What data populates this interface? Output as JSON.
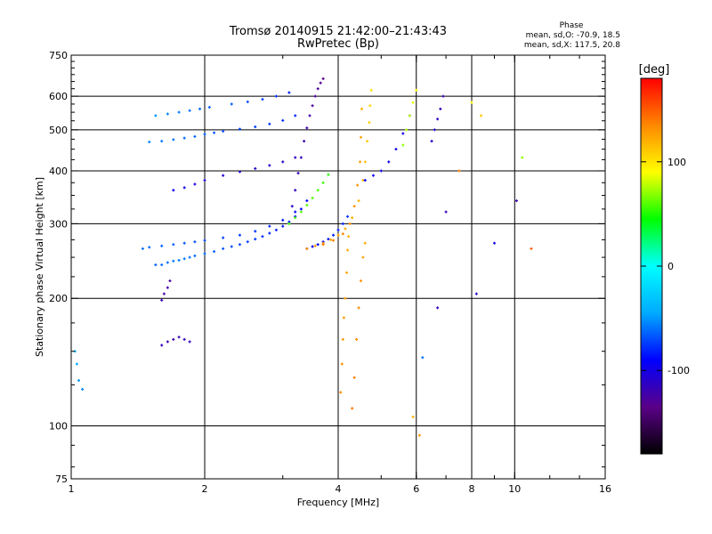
{
  "chart_data": {
    "type": "scatter",
    "title": "Tromsø 20140915 21:42:00–21:43:43",
    "subtitle": "RwPretec (Bp)",
    "xlabel": "Frequency [MHz]",
    "ylabel": "Stationary phase Virtual Height [km]",
    "x_scale": "log",
    "y_scale": "log",
    "xlim": [
      1,
      16
    ],
    "ylim": [
      75,
      750
    ],
    "x_ticks": [
      1,
      2,
      4,
      6,
      8,
      10,
      16
    ],
    "y_ticks": [
      75,
      100,
      200,
      300,
      400,
      500,
      600,
      750
    ],
    "x_gridlines": [
      2,
      4,
      6,
      8,
      10
    ],
    "y_gridlines": [
      100,
      200,
      300,
      400,
      500,
      600
    ],
    "grid": true,
    "phase_info": {
      "heading": "Phase",
      "line_o": "mean, sd,O: -70.9, 18.5",
      "line_x": "mean, sd,X: 117.5, 20.8"
    },
    "colorbar": {
      "label": "[deg]",
      "ticks": [
        100,
        0,
        -100
      ],
      "range": [
        -180,
        180
      ],
      "colors": [
        "#000000",
        "#5a0088",
        "#0000ff",
        "#00aaff",
        "#00ffff",
        "#00ff00",
        "#ffff00",
        "#ff8800",
        "#ff0000"
      ]
    },
    "series": [
      {
        "x": [
          1.55,
          1.6,
          1.65,
          1.7,
          1.75,
          1.8,
          1.85,
          1.9,
          2.0,
          2.1,
          2.2,
          2.3,
          2.4,
          2.5,
          2.6,
          2.7,
          2.8,
          2.9,
          3.0,
          3.1,
          3.2,
          3.3
        ],
        "y": [
          240,
          240,
          243,
          245,
          246,
          248,
          250,
          252,
          255,
          258,
          262,
          265,
          268,
          272,
          276,
          280,
          285,
          290,
          296,
          303,
          312,
          325
        ],
        "phase": [
          -65,
          -62,
          -60,
          -58,
          -56,
          -58,
          -60,
          -62,
          -64,
          -66,
          -68,
          -70,
          -72,
          -74,
          -76,
          -78,
          -80,
          -82,
          -84,
          -86,
          -88,
          -90
        ]
      },
      {
        "x": [
          1.45,
          1.5,
          1.6,
          1.7,
          1.8,
          1.9,
          2.0,
          2.2,
          2.4,
          2.6,
          2.8,
          3.0,
          3.2,
          3.4
        ],
        "y": [
          262,
          264,
          266,
          268,
          270,
          272,
          274,
          278,
          282,
          288,
          296,
          306,
          320,
          340
        ],
        "phase": [
          -60,
          -62,
          -64,
          -66,
          -68,
          -70,
          -72,
          -74,
          -76,
          -78,
          -80,
          -84,
          -88,
          -92
        ]
      },
      {
        "x": [
          1.5,
          1.6,
          1.7,
          1.8,
          1.9,
          2.0,
          2.1,
          2.2,
          2.4,
          2.6,
          2.8,
          3.0,
          3.2
        ],
        "y": [
          468,
          470,
          474,
          478,
          482,
          488,
          492,
          496,
          502,
          508,
          516,
          526,
          540
        ],
        "phase": [
          -55,
          -58,
          -60,
          -62,
          -64,
          -66,
          -68,
          -70,
          -72,
          -74,
          -76,
          -78,
          -80
        ]
      },
      {
        "x": [
          1.55,
          1.65,
          1.75,
          1.85,
          1.95,
          2.05,
          2.3,
          2.5,
          2.7,
          2.9,
          3.1
        ],
        "y": [
          540,
          545,
          550,
          555,
          560,
          565,
          575,
          582,
          590,
          600,
          612
        ],
        "phase": [
          -52,
          -55,
          -58,
          -60,
          -62,
          -64,
          -66,
          -70,
          -74,
          -78,
          -82
        ]
      },
      {
        "x": [
          1.7,
          1.8,
          1.9,
          2.0,
          2.2,
          2.4,
          2.6,
          2.8,
          3.0,
          3.2
        ],
        "y": [
          360,
          365,
          372,
          380,
          390,
          398,
          405,
          412,
          420,
          430
        ],
        "phase": [
          -95,
          -98,
          -100,
          -102,
          -104,
          -106,
          -108,
          -110,
          -112,
          -114
        ]
      },
      {
        "x": [
          3.15,
          3.2,
          3.25,
          3.3,
          3.35,
          3.4,
          3.45,
          3.5,
          3.55,
          3.6,
          3.65,
          3.7
        ],
        "y": [
          330,
          360,
          395,
          430,
          470,
          505,
          540,
          570,
          600,
          625,
          645,
          660
        ],
        "phase": [
          -112,
          -114,
          -116,
          -118,
          -120,
          -122,
          -124,
          -126,
          -128,
          -130,
          -132,
          -134
        ]
      },
      {
        "x": [
          3.4,
          3.5,
          3.6,
          3.7,
          3.8,
          3.9,
          4.0,
          4.1,
          4.2
        ],
        "y": [
          262,
          265,
          268,
          272,
          276,
          282,
          290,
          300,
          312
        ],
        "phase": [
          -95,
          -92,
          -90,
          -88,
          -86,
          -84,
          -82,
          -80,
          -78
        ]
      },
      {
        "x": [
          3.1,
          3.2,
          3.3,
          3.4,
          3.5,
          3.6,
          3.7,
          3.8
        ],
        "y": [
          300,
          310,
          320,
          332,
          345,
          360,
          375,
          392
        ],
        "phase": [
          55,
          58,
          60,
          62,
          60,
          58,
          55,
          52
        ]
      },
      {
        "x": [
          3.4,
          3.55,
          3.7,
          3.85,
          4.0,
          4.15,
          4.3,
          4.45,
          4.55,
          4.6,
          4.65,
          4.7,
          4.72,
          4.75
        ],
        "y": [
          262,
          266,
          270,
          275,
          282,
          292,
          310,
          340,
          380,
          420,
          470,
          520,
          570,
          620
        ],
        "phase": [
          130,
          128,
          126,
          125,
          124,
          122,
          120,
          118,
          115,
          112,
          110,
          108,
          105,
          102
        ]
      },
      {
        "x": [
          3.7,
          3.9,
          4.1,
          4.25,
          4.35,
          4.42,
          4.48,
          4.5,
          4.52
        ],
        "y": [
          268,
          274,
          284,
          300,
          330,
          370,
          420,
          480,
          560
        ],
        "phase": [
          140,
          138,
          136,
          134,
          132,
          130,
          128,
          125,
          120
        ]
      },
      {
        "x": [
          4.05,
          4.08,
          4.1,
          4.12,
          4.15,
          4.18,
          4.2,
          4.22
        ],
        "y": [
          120,
          140,
          160,
          180,
          200,
          230,
          260,
          280
        ],
        "phase": [
          135,
          132,
          130,
          128,
          126,
          124,
          122,
          120
        ]
      },
      {
        "x": [
          4.3,
          4.35,
          4.4,
          4.45,
          4.5,
          4.55,
          4.6
        ],
        "y": [
          110,
          130,
          160,
          190,
          220,
          250,
          270
        ],
        "phase": [
          140,
          138,
          136,
          134,
          130,
          126,
          122
        ]
      },
      {
        "x": [
          4.6,
          4.8,
          5.0,
          5.2,
          5.4,
          5.6,
          5.8
        ],
        "y": [
          380,
          390,
          400,
          420,
          450,
          490,
          540
        ],
        "phase": [
          -90,
          -92,
          -94,
          -96,
          -98,
          -100,
          -102
        ]
      },
      {
        "x": [
          5.6,
          5.7,
          5.8,
          5.9,
          6.0
        ],
        "y": [
          460,
          500,
          540,
          580,
          620
        ],
        "phase": [
          70,
          75,
          80,
          85,
          90
        ]
      },
      {
        "x": [
          6.5,
          6.6,
          6.7,
          6.8,
          6.9
        ],
        "y": [
          470,
          500,
          530,
          560,
          600
        ],
        "phase": [
          -110,
          -112,
          -114,
          -116,
          -118
        ]
      },
      {
        "x": [
          1.6,
          1.65,
          1.7,
          1.75,
          1.8,
          1.85
        ],
        "y": [
          155,
          158,
          160,
          162,
          160,
          158
        ],
        "phase": [
          -115,
          -118,
          -120,
          -118,
          -116,
          -114
        ]
      },
      {
        "x": [
          1.6,
          1.62,
          1.65,
          1.67
        ],
        "y": [
          198,
          205,
          212,
          220
        ],
        "phase": [
          -120,
          -122,
          -124,
          -126
        ]
      },
      {
        "x": [
          1.02,
          1.03,
          1.04,
          1.06
        ],
        "y": [
          150,
          140,
          128,
          122
        ],
        "phase": [
          -40,
          -45,
          -50,
          -55
        ]
      },
      {
        "x": [
          5.9,
          6.1,
          7.0,
          7.5,
          8.2,
          8.4,
          9.0,
          10.1,
          10.4,
          10.9,
          6.7,
          6.2,
          8.0
        ],
        "y": [
          105,
          95,
          320,
          400,
          205,
          540,
          270,
          340,
          430,
          262,
          190,
          145,
          580
        ],
        "phase": [
          120,
          130,
          -120,
          140,
          -110,
          110,
          -100,
          -120,
          70,
          150,
          -115,
          -60,
          90
        ]
      }
    ]
  }
}
